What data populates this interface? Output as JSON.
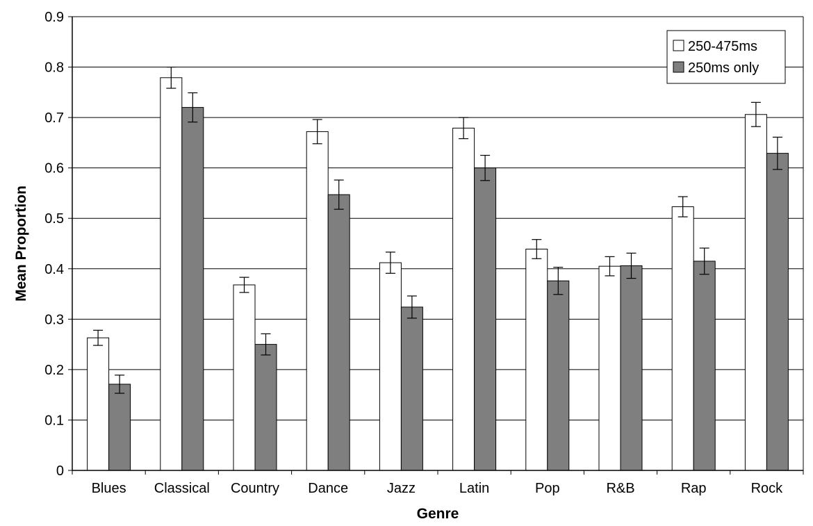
{
  "chart_data": {
    "type": "bar",
    "title": "",
    "xlabel": "Genre",
    "ylabel": "Mean Proportion",
    "ylim": [
      0,
      0.9
    ],
    "yticks": [
      "0",
      "0.1",
      "0.2",
      "0.3",
      "0.4",
      "0.5",
      "0.6",
      "0.7",
      "0.8",
      "0.9"
    ],
    "categories": [
      "Blues",
      "Classical",
      "Country",
      "Dance",
      "Jazz",
      "Latin",
      "Pop",
      "R&B",
      "Rap",
      "Rock"
    ],
    "series": [
      {
        "name": "250-475ms",
        "color": "#ffffff",
        "values": [
          0.263,
          0.779,
          0.368,
          0.672,
          0.412,
          0.679,
          0.439,
          0.405,
          0.523,
          0.706
        ],
        "error": [
          0.015,
          0.021,
          0.015,
          0.024,
          0.021,
          0.021,
          0.019,
          0.019,
          0.02,
          0.024
        ]
      },
      {
        "name": "250ms only",
        "color": "#7f7f7f",
        "values": [
          0.171,
          0.72,
          0.25,
          0.547,
          0.324,
          0.6,
          0.376,
          0.406,
          0.415,
          0.629
        ],
        "error": [
          0.018,
          0.029,
          0.021,
          0.029,
          0.022,
          0.025,
          0.027,
          0.025,
          0.026,
          0.032
        ]
      }
    ],
    "grid": "horizontal",
    "legend_position": "top-right"
  }
}
